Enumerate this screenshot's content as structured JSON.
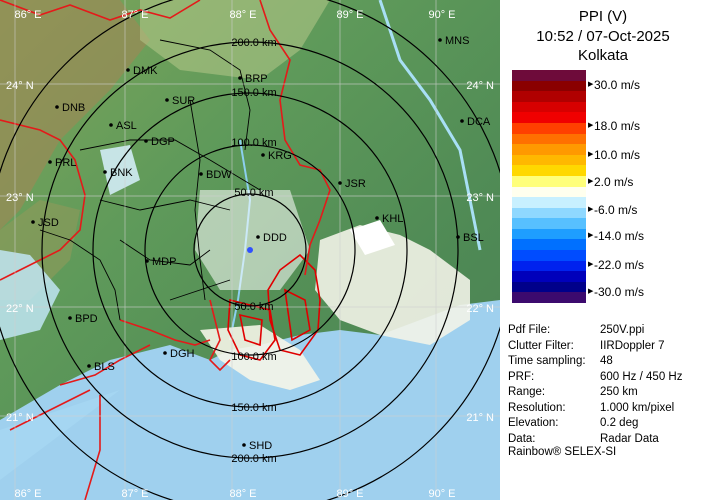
{
  "header": {
    "product": "PPI (V)",
    "datetime": "10:52 / 07-Oct-2025",
    "station": "Kolkata"
  },
  "scale": {
    "labels": [
      "30.0 m/s",
      "18.0 m/s",
      "10.0 m/s",
      "2.0 m/s",
      "-6.0 m/s",
      "-14.0 m/s",
      "-22.0 m/s",
      "-30.0 m/s"
    ],
    "colors": [
      "#6e0b3a",
      "#8a0000",
      "#b00000",
      "#d70000",
      "#f00000",
      "#ff4000",
      "#ff7000",
      "#ff9900",
      "#ffb800",
      "#ffd800",
      "#ffff7a",
      "#ffffee",
      "#c8f0ff",
      "#8fd8ff",
      "#57c0ff",
      "#1e9eff",
      "#0070ff",
      "#004cff",
      "#0022ee",
      "#0000bb",
      "#00008a",
      "#3c0a6e"
    ]
  },
  "info": [
    {
      "key": "Pdf File:",
      "value": "250V.ppi"
    },
    {
      "key": "Clutter Filter:",
      "value": "IIRDoppler 7"
    },
    {
      "key": "Time sampling:",
      "value": "48"
    },
    {
      "key": "PRF:",
      "value": "600 Hz / 450 Hz"
    },
    {
      "key": "Range:",
      "value": "250 km"
    },
    {
      "key": "Resolution:",
      "value": "1.000 km/pixel"
    },
    {
      "key": "Elevation:",
      "value": "0.2 deg"
    },
    {
      "key": "Data:",
      "value": "Radar Data"
    }
  ],
  "footer": "Rainbow® SELEX-SI",
  "map": {
    "longitudes": [
      "86° E",
      "87° E",
      "88° E",
      "89° E",
      "90° E"
    ],
    "latitudes": [
      "24° N",
      "23° N",
      "22° N",
      "21° N"
    ],
    "ring_labels": [
      "50.0 km",
      "100.0 km",
      "150.0 km",
      "200.0 km"
    ],
    "ring_labels_lower": [
      "50.0 km",
      "100.0 km",
      "150.0 km",
      "200.0 km"
    ],
    "places": [
      "MNS",
      "DMK",
      "BRP",
      "DNB",
      "SUR",
      "DCA",
      "ASL",
      "DGP",
      "KRG",
      "PRL",
      "BNK",
      "BDW",
      "JSR",
      "KHL",
      "JSD",
      "BSL",
      "MDP",
      "DDD",
      "BPD",
      "BLS",
      "DGH",
      "SHD"
    ]
  }
}
